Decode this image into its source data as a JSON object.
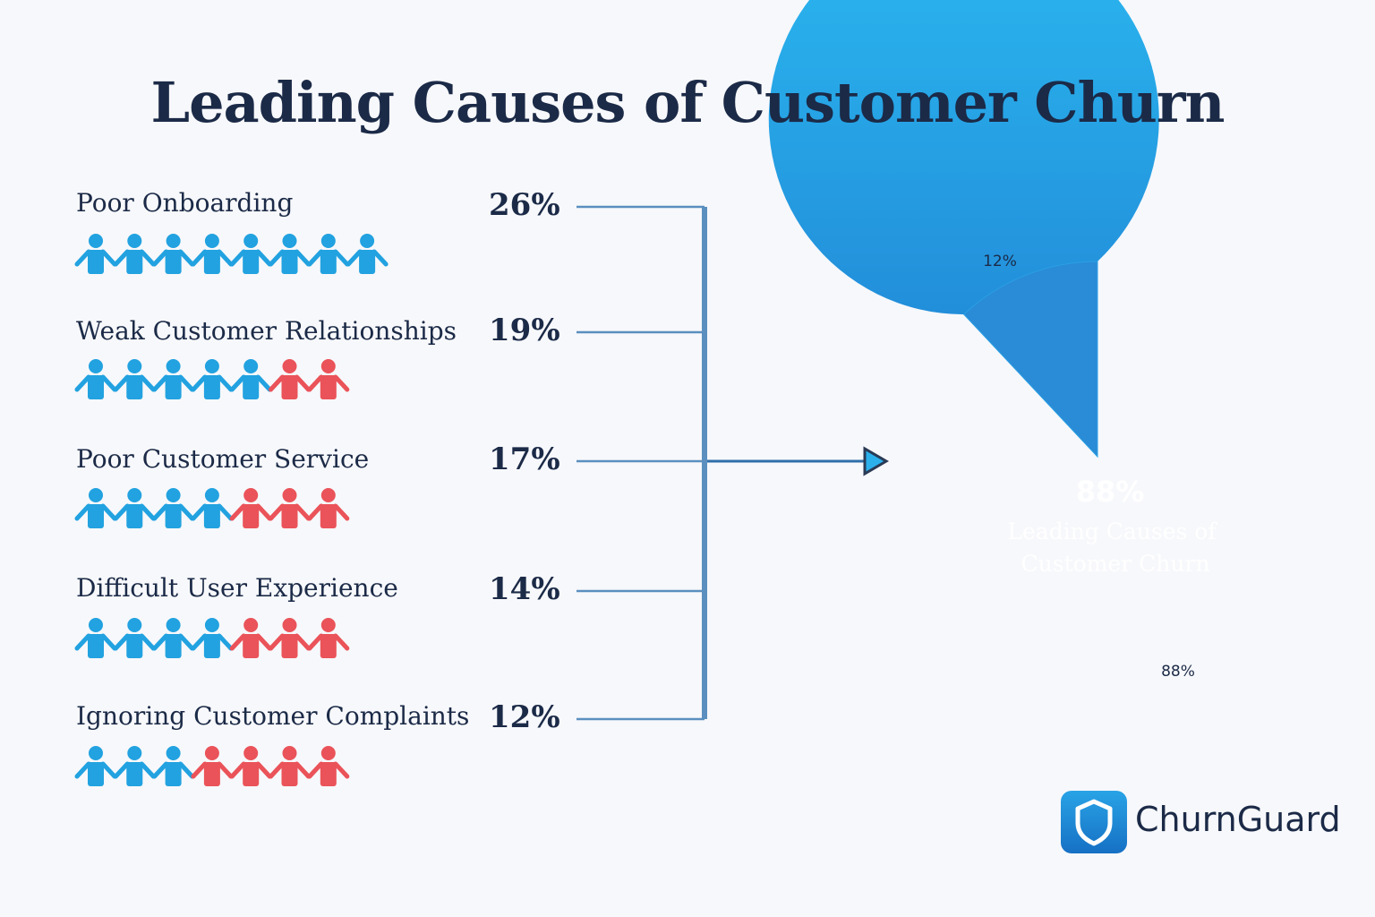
{
  "title": "Leading Causes of Customer Churn",
  "chart_data": {
    "type": "bar",
    "title": "Leading Causes of Customer Churn",
    "categories": [
      "Poor Onboarding",
      "Weak Customer Relationships",
      "Poor Customer Service",
      "Difficult User Experience",
      "Ignoring Customer Complaints"
    ],
    "values": [
      26,
      19,
      17,
      14,
      12
    ],
    "labels": [
      "26%",
      "19%",
      "17%",
      "14%",
      "12%"
    ],
    "icon_counts": [
      {
        "blue": 8,
        "red": 0
      },
      {
        "blue": 5,
        "red": 2
      },
      {
        "blue": 4,
        "red": 3
      },
      {
        "blue": 4,
        "red": 3
      },
      {
        "blue": 3,
        "red": 4
      }
    ],
    "pie": {
      "type": "pie",
      "slices": [
        {
          "value": 12,
          "label": "12%"
        },
        {
          "value": 88,
          "label": "88%"
        }
      ],
      "center_value": "88%",
      "center_label_line1": "Leading Causes of",
      "center_label_line2": "Customer Churn"
    }
  },
  "colors": {
    "blue": "#22a2e0",
    "red": "#ea5359",
    "pie_main": "#2aa9ea",
    "pie_slice": "#2a8bd6",
    "connector": "#5a8fbf",
    "text": "#1b2a47"
  },
  "brand": {
    "name": "ChurnGuard",
    "icon": "shield-icon"
  }
}
